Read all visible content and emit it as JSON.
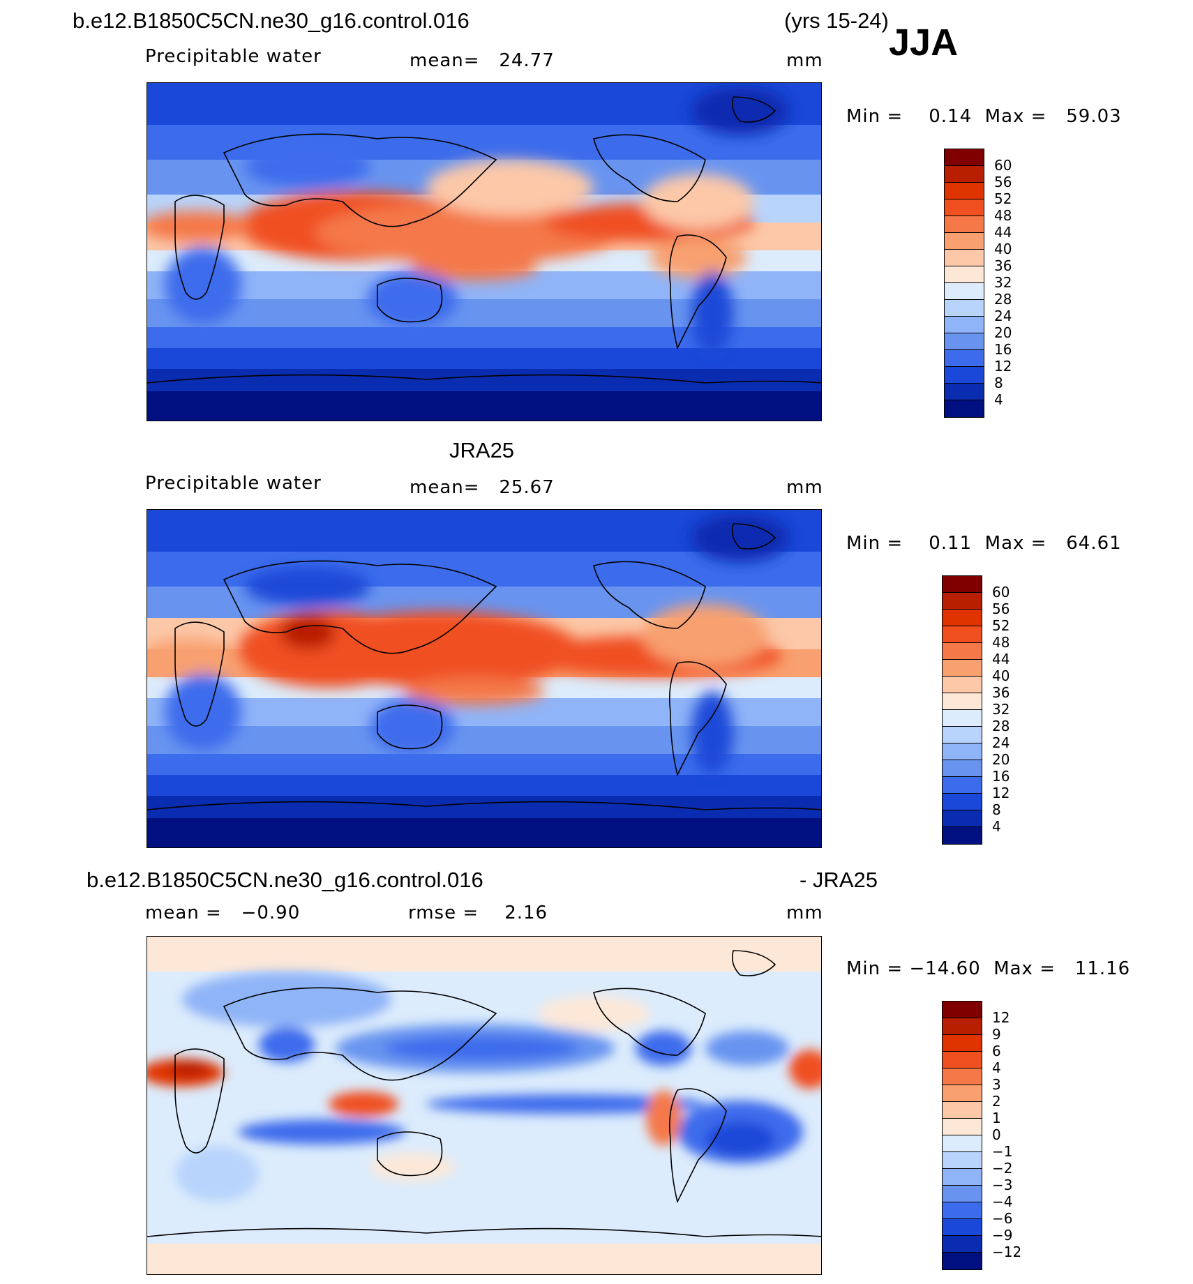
{
  "header": {
    "case_name": "b.e12.B1850C5CN.ne30_g16.control.016",
    "years": "(yrs 15-24)",
    "season": "JJA"
  },
  "panels": [
    {
      "id": "model",
      "title": "",
      "variable": "Precipitable water",
      "stat": "mean=   24.77",
      "units": "mm",
      "minmax": "Min =    0.14  Max =   59.03"
    },
    {
      "id": "obs",
      "title": "JRA25",
      "variable": "Precipitable water",
      "stat": "mean=   25.67",
      "units": "mm",
      "minmax": "Min =    0.11  Max =   64.61"
    },
    {
      "id": "diff",
      "title_left": "b.e12.B1850C5CN.ne30_g16.control.016",
      "title_right": "- JRA25",
      "stat_mean": "mean =   −0.90",
      "stat_rmse": "rmse =    2.16",
      "units": "mm",
      "minmax": "Min = −14.60  Max =   11.16"
    }
  ],
  "colorbars": {
    "abs": {
      "labels": [
        "60",
        "56",
        "52",
        "48",
        "44",
        "40",
        "36",
        "32",
        "28",
        "24",
        "20",
        "16",
        "12",
        "8",
        "4"
      ],
      "colors": [
        "#800000",
        "#b81e00",
        "#e03400",
        "#f05020",
        "#f47848",
        "#f8a070",
        "#fcc8a8",
        "#fde8d8",
        "#dcecfc",
        "#b8d4fc",
        "#90b4f8",
        "#6894f0",
        "#3c6cec",
        "#1a48d8",
        "#0a2cb0",
        "#001080"
      ]
    },
    "diff": {
      "labels": [
        "12",
        "9",
        "6",
        "4",
        "3",
        "2",
        "1",
        "0",
        "−1",
        "−2",
        "−3",
        "−4",
        "−6",
        "−9",
        "−12"
      ],
      "colors": [
        "#800000",
        "#b81e00",
        "#e03400",
        "#f05020",
        "#f47848",
        "#f8a070",
        "#fcc8a8",
        "#fde8d8",
        "#dcecfc",
        "#b8d4fc",
        "#90b4f8",
        "#6894f0",
        "#3c6cec",
        "#1a48d8",
        "#0a2cb0",
        "#001080"
      ]
    }
  }
}
